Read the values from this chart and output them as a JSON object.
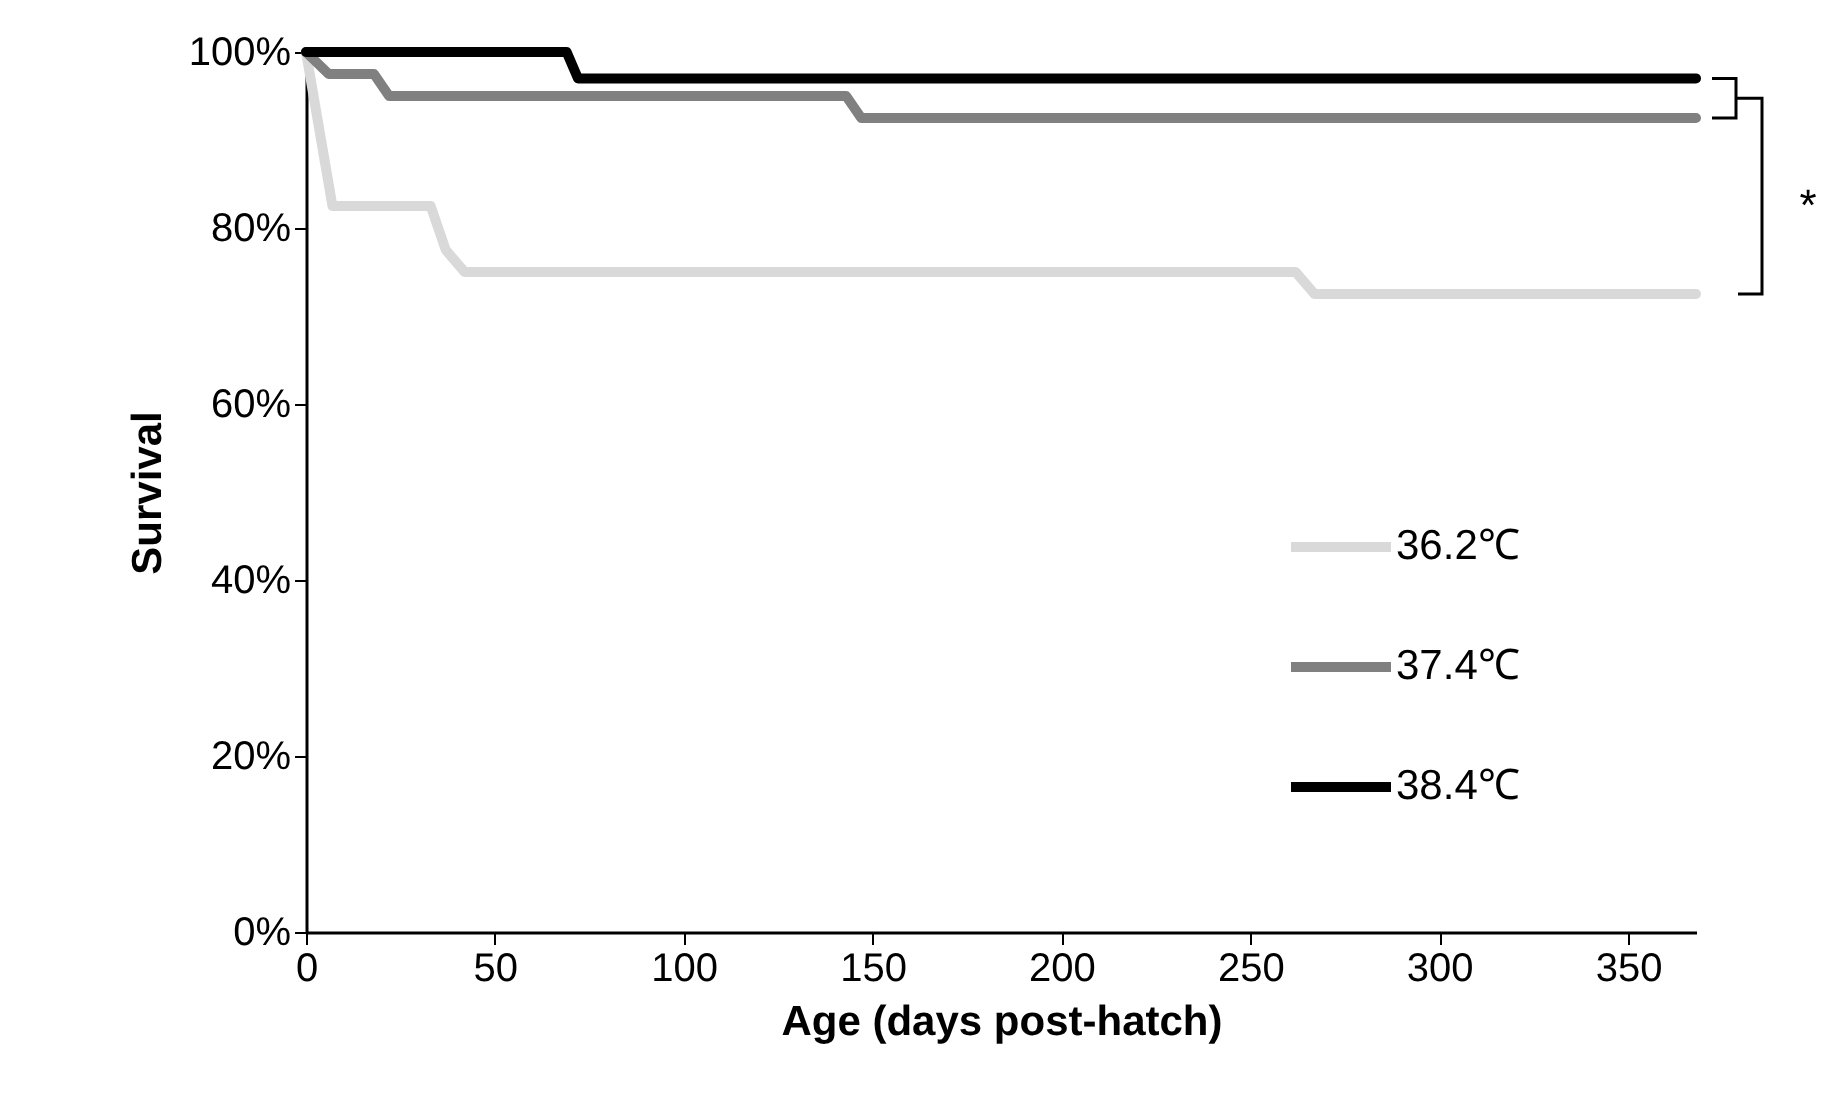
{
  "chart_data": {
    "type": "line",
    "xlabel": "Age (days post-hatch)",
    "ylabel": "Survival",
    "xlim": [
      0,
      368
    ],
    "xticks": [
      0,
      50,
      100,
      150,
      200,
      250,
      300,
      350
    ],
    "ylim": [
      0,
      100
    ],
    "yticks": [
      {
        "value": 0,
        "label": "0%"
      },
      {
        "value": 20,
        "label": "20%"
      },
      {
        "value": 40,
        "label": "40%"
      },
      {
        "value": 60,
        "label": "60%"
      },
      {
        "value": 80,
        "label": "80%"
      },
      {
        "value": 100,
        "label": "100%"
      }
    ],
    "grid": false,
    "legend": "right",
    "line_style": "solid",
    "annotations": [
      "*"
    ],
    "series": [
      {
        "name": "36.2℃",
        "color": "#d9d9d9",
        "x": [
          0,
          7,
          33,
          37,
          42,
          262,
          267,
          368
        ],
        "values": [
          100,
          82.5,
          82.5,
          77.5,
          75,
          75,
          72.5,
          72.5
        ]
      },
      {
        "name": "37.4℃",
        "color": "#808080",
        "x": [
          0,
          6,
          18,
          22,
          143,
          147,
          368
        ],
        "values": [
          100,
          97.5,
          97.5,
          95,
          95,
          92.5,
          92.5
        ]
      },
      {
        "name": "38.4℃",
        "color": "#000000",
        "x": [
          0,
          69,
          72,
          368
        ],
        "values": [
          100,
          100,
          97,
          97
        ]
      }
    ]
  }
}
